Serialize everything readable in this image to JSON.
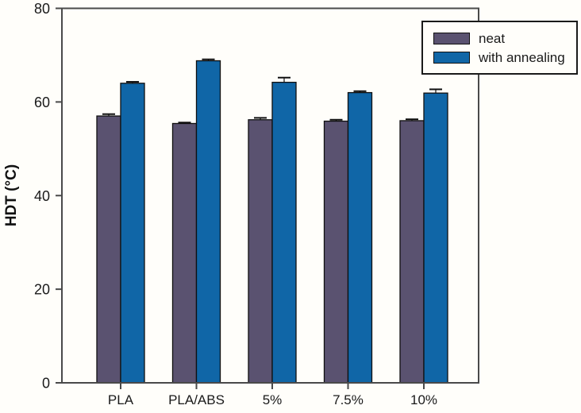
{
  "chart_data": {
    "type": "bar",
    "title": "",
    "xlabel": "",
    "ylabel": "HDT (°C)",
    "ylim": [
      0,
      80
    ],
    "yticks": [
      0,
      20,
      40,
      60,
      80
    ],
    "categories": [
      "PLA",
      "PLA/ABS",
      "5%",
      "7.5%",
      "10%"
    ],
    "series": [
      {
        "name": "neat",
        "color": "#5a5270",
        "values": [
          57.0,
          55.4,
          56.2,
          55.9,
          56.0
        ],
        "errors": [
          0.4,
          0.2,
          0.4,
          0.3,
          0.3
        ]
      },
      {
        "name": "with annealing",
        "color": "#1066a7",
        "values": [
          64.0,
          68.8,
          64.2,
          62.0,
          61.9
        ],
        "errors": [
          0.3,
          0.3,
          1.0,
          0.3,
          0.8
        ]
      }
    ],
    "legend_position": "top-right",
    "grid": false,
    "error_bars": "upper",
    "frame_color": "#4a4a4a",
    "bar_outline_color": "#101010"
  }
}
